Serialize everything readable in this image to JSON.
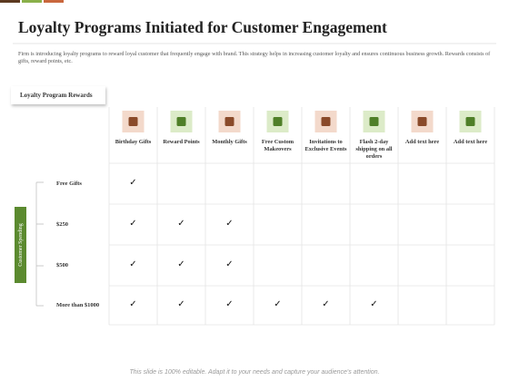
{
  "header": {
    "title": "Loyalty Programs Initiated for Customer Engagement",
    "description": "Firm is introducing loyalty programs to reward loyal customer that frequently engage with brand. This strategy helps in increasing customer loyalty and ensures continuous business growth.  Rewards consists of gifts, reward points, etc."
  },
  "table": {
    "corner_label": "Loyalty Program Rewards",
    "side_label": "Customer Spending",
    "columns": [
      "Birthday Gifts",
      "Reward Points",
      "Monthly Gifts",
      "Free Custom Makeovers",
      "Invitations to Exclusive Events",
      "Flash 2-day shipping on all orders",
      "Add text here",
      "Add text here"
    ],
    "rows": [
      {
        "label": "Free Gifts",
        "cells": [
          "✓",
          null,
          null,
          null,
          null,
          null,
          null,
          null
        ]
      },
      {
        "label": "$250",
        "cells": [
          "✓",
          "✓",
          "✓",
          null,
          null,
          null,
          null,
          null
        ]
      },
      {
        "label": "$500",
        "cells": [
          "✓",
          "✓",
          "✓",
          null,
          null,
          null,
          null,
          null
        ]
      },
      {
        "label": "More than $1000",
        "cells": [
          "✓",
          "✓",
          "✓",
          "✓",
          "✓",
          "✓",
          null,
          null
        ]
      }
    ]
  },
  "footer": {
    "note": "This slide is 100% editable. Adapt it to your needs and capture your audience's attention."
  }
}
